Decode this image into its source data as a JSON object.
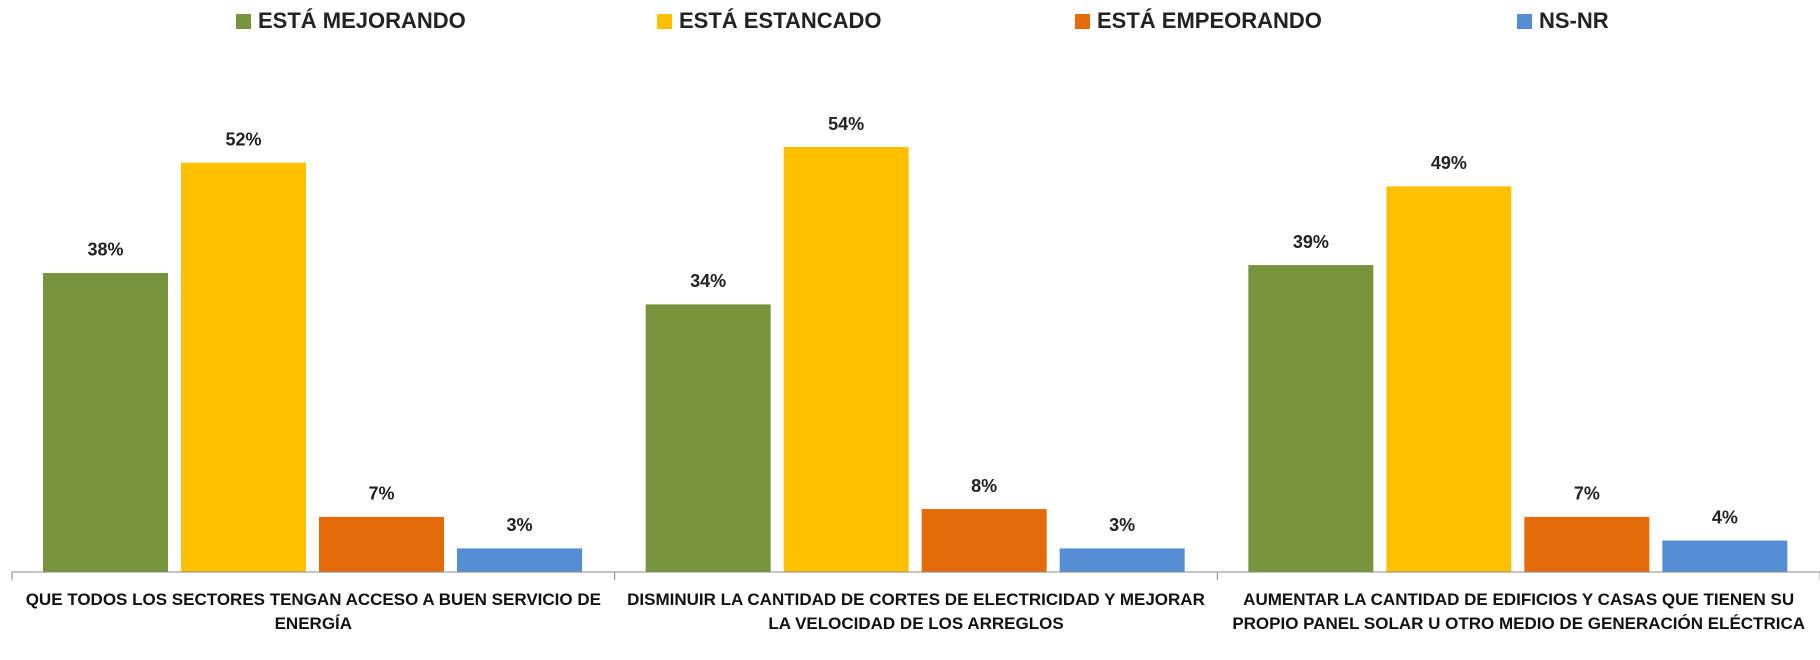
{
  "chart_data": {
    "type": "bar",
    "categories": [
      "QUE TODOS LOS SECTORES TENGAN ACCESO A BUEN SERVICIO DE ENERGÍA",
      "DISMINUIR LA CANTIDAD DE CORTES DE ELECTRICIDAD Y MEJORAR LA VELOCIDAD DE LOS ARREGLOS",
      "AUMENTAR LA CANTIDAD DE EDIFICIOS Y CASAS QUE TIENEN SU PROPIO PANEL SOLAR U OTRO MEDIO DE GENERACIÓN ELÉCTRICA"
    ],
    "series": [
      {
        "name": "ESTÁ MEJORANDO",
        "color": "#77933c",
        "values": [
          38,
          34,
          39
        ],
        "value_labels": [
          "38%",
          "34%",
          "39%"
        ]
      },
      {
        "name": "ESTÁ ESTANCADO",
        "color": "#ffc000",
        "values": [
          52,
          54,
          49
        ],
        "value_labels": [
          "52%",
          "54%",
          "49%"
        ]
      },
      {
        "name": "ESTÁ EMPEORANDO",
        "color": "#e36c09",
        "values": [
          7,
          8,
          7
        ],
        "value_labels": [
          "7%",
          "8%",
          "7%"
        ]
      },
      {
        "name": "NS-NR",
        "color": "#558ed5",
        "values": [
          3,
          3,
          4
        ],
        "value_labels": [
          "3%",
          "3%",
          "4%"
        ]
      }
    ],
    "legend": "top"
  }
}
